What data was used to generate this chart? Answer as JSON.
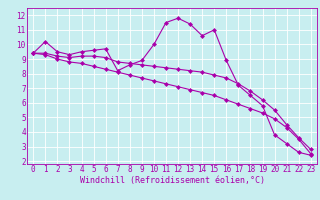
{
  "xlabel": "Windchill (Refroidissement éolien,°C)",
  "ylabel": "",
  "bg_color": "#c8eef0",
  "line_color": "#aa00aa",
  "grid_color": "#ffffff",
  "x_ticks": [
    0,
    1,
    2,
    3,
    4,
    5,
    6,
    7,
    8,
    9,
    10,
    11,
    12,
    13,
    14,
    15,
    16,
    17,
    18,
    19,
    20,
    21,
    22,
    23
  ],
  "y_ticks": [
    2,
    3,
    4,
    5,
    6,
    7,
    8,
    9,
    10,
    11,
    12
  ],
  "ylim": [
    1.8,
    12.5
  ],
  "xlim": [
    -0.5,
    23.5
  ],
  "line1": [
    9.4,
    10.2,
    9.5,
    9.3,
    9.5,
    9.6,
    9.7,
    8.2,
    8.6,
    8.9,
    10.0,
    11.5,
    11.8,
    11.4,
    10.6,
    11.0,
    8.9,
    7.2,
    6.5,
    5.8,
    3.8,
    3.2,
    2.6,
    2.4
  ],
  "line2": [
    9.4,
    9.4,
    9.2,
    9.1,
    9.2,
    9.2,
    9.1,
    8.8,
    8.7,
    8.6,
    8.5,
    8.4,
    8.3,
    8.2,
    8.1,
    7.9,
    7.7,
    7.3,
    6.8,
    6.2,
    5.5,
    4.5,
    3.6,
    2.8
  ],
  "line3": [
    9.4,
    9.3,
    9.0,
    8.8,
    8.7,
    8.5,
    8.3,
    8.1,
    7.9,
    7.7,
    7.5,
    7.3,
    7.1,
    6.9,
    6.7,
    6.5,
    6.2,
    5.9,
    5.6,
    5.3,
    4.9,
    4.3,
    3.5,
    2.5
  ],
  "marker": "D",
  "markersize": 2.0,
  "linewidth": 0.8,
  "xlabel_fontsize": 6,
  "tick_fontsize": 5.5
}
